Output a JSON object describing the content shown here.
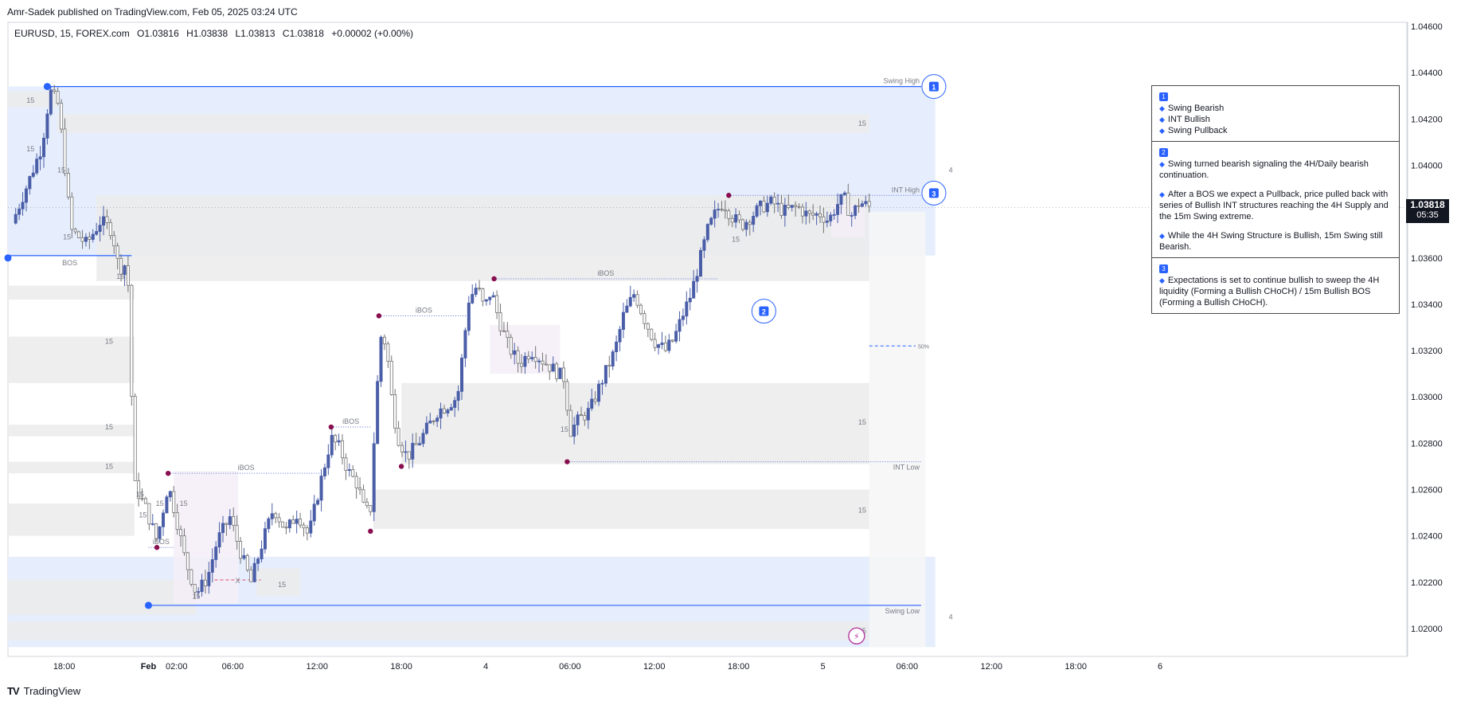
{
  "header": {
    "publisher": "Amr-Sadek published on TradingView.com, Feb 05, 2025 03:24 UTC"
  },
  "symbol_bar": {
    "symbol": "EURUSD, 15, FOREX.com",
    "open": "O1.03816",
    "high": "H1.03838",
    "low": "L1.03813",
    "close": "C1.03818",
    "change": "+0.00002 (+0.00%)"
  },
  "price_tag": {
    "price": "1.03818",
    "countdown": "05:35"
  },
  "footer": {
    "brand": "TradingView"
  },
  "annotation_box": {
    "sections": [
      {
        "num": "1",
        "items": [
          "Swing Bearish",
          "INT Bullish",
          "Swing Pullback"
        ]
      },
      {
        "num": "2",
        "items": [
          "Swing turned bearish signaling the 4H/Daily bearish continuation.",
          "After a BOS we expect a Pullback, price pulled back with series of Bullish INT structures reaching the 4H Supply and the 15m Swing extreme.",
          "While the 4H Swing Structure is Bullish, 15m Swing still Bearish."
        ]
      },
      {
        "num": "3",
        "items": [
          "Expectations is set to continue bullish to sweep the 4H liquidity (Forming a Bullish CHoCH)  / 15m Bullish BOS (Forming a Bullish CHoCH)."
        ]
      }
    ]
  },
  "colors": {
    "bull": "#4a5ea8",
    "bear": "#737373",
    "swing_line": "#2962ff",
    "pivot": "#880e4f",
    "zone_blue": "#e3ecfd",
    "zone_gray": "#ebebeb"
  },
  "chart_data": {
    "type": "candlestick",
    "symbol": "EURUSD",
    "timeframe": "15",
    "y_ticks": [
      1.046,
      1.044,
      1.042,
      1.04,
      1.038,
      1.036,
      1.034,
      1.032,
      1.03,
      1.028,
      1.026,
      1.024,
      1.022,
      1.02
    ],
    "y_tick_labels": [
      "1.04600",
      "1.04400",
      "1.04200",
      "1.04000",
      "1.03800",
      "1.03600",
      "1.03400",
      "1.03200",
      "1.03000",
      "1.02800",
      "1.02600",
      "1.02400",
      "1.02200",
      "1.02000"
    ],
    "x_ticks": [
      {
        "hour": 18,
        "label": "18:00"
      },
      {
        "hour": 24,
        "label": "Feb"
      },
      {
        "hour": 26,
        "label": "02:00"
      },
      {
        "hour": 30,
        "label": "06:00"
      },
      {
        "hour": 36,
        "label": "12:00"
      },
      {
        "hour": 42,
        "label": "18:00"
      },
      {
        "hour": 48,
        "label": "4"
      },
      {
        "hour": 54,
        "label": "06:00"
      },
      {
        "hour": 60,
        "label": "12:00"
      },
      {
        "hour": 66,
        "label": "18:00"
      },
      {
        "hour": 72,
        "label": "5"
      },
      {
        "hour": 78,
        "label": "06:00"
      },
      {
        "hour": 84,
        "label": "12:00"
      },
      {
        "hour": 90,
        "label": "18:00"
      },
      {
        "hour": 96,
        "label": "6"
      }
    ],
    "close_path": [
      [
        14.3,
        1.0375
      ],
      [
        15.6,
        1.0395
      ],
      [
        16.4,
        1.0408
      ],
      [
        17.0,
        1.0432
      ],
      [
        17.6,
        1.0426
      ],
      [
        18.5,
        1.0372
      ],
      [
        19.6,
        1.0366
      ],
      [
        20.6,
        1.0376
      ],
      [
        21.4,
        1.0372
      ],
      [
        21.9,
        1.0355
      ],
      [
        22.5,
        1.0358
      ],
      [
        23.0,
        1.0262
      ],
      [
        23.8,
        1.0252
      ],
      [
        24.6,
        1.0238
      ],
      [
        25.4,
        1.0262
      ],
      [
        25.9,
        1.025
      ],
      [
        26.6,
        1.023
      ],
      [
        27.4,
        1.0215
      ],
      [
        28.2,
        1.0222
      ],
      [
        28.9,
        1.0238
      ],
      [
        29.8,
        1.0248
      ],
      [
        30.6,
        1.0232
      ],
      [
        31.3,
        1.022
      ],
      [
        32.0,
        1.0235
      ],
      [
        32.9,
        1.0252
      ],
      [
        33.8,
        1.0242
      ],
      [
        34.6,
        1.025
      ],
      [
        35.4,
        1.024
      ],
      [
        36.2,
        1.0262
      ],
      [
        37.0,
        1.0282
      ],
      [
        37.6,
        1.0278
      ],
      [
        38.2,
        1.0268
      ],
      [
        38.9,
        1.0262
      ],
      [
        39.4,
        1.025
      ],
      [
        39.8,
        1.0252
      ],
      [
        40.2,
        1.0298
      ],
      [
        40.6,
        1.033
      ],
      [
        41.0,
        1.0318
      ],
      [
        41.4,
        1.0294
      ],
      [
        41.8,
        1.0282
      ],
      [
        42.4,
        1.0274
      ],
      [
        43.2,
        1.028
      ],
      [
        44.0,
        1.0288
      ],
      [
        44.6,
        1.0294
      ],
      [
        45.2,
        1.0296
      ],
      [
        46.0,
        1.03
      ],
      [
        46.8,
        1.0342
      ],
      [
        47.4,
        1.0348
      ],
      [
        47.9,
        1.0338
      ],
      [
        48.4,
        1.0346
      ],
      [
        48.9,
        1.0334
      ],
      [
        49.6,
        1.0322
      ],
      [
        50.4,
        1.0314
      ],
      [
        51.2,
        1.032
      ],
      [
        52.0,
        1.0316
      ],
      [
        52.8,
        1.0312
      ],
      [
        53.6,
        1.0308
      ],
      [
        54.0,
        1.0285
      ],
      [
        54.6,
        1.029
      ],
      [
        55.4,
        1.0294
      ],
      [
        56.2,
        1.0306
      ],
      [
        57.2,
        1.032
      ],
      [
        57.8,
        1.0335
      ],
      [
        58.6,
        1.0345
      ],
      [
        59.2,
        1.0335
      ],
      [
        60.0,
        1.0324
      ],
      [
        60.8,
        1.032
      ],
      [
        61.4,
        1.0325
      ],
      [
        62.0,
        1.0335
      ],
      [
        62.6,
        1.0344
      ],
      [
        63.2,
        1.0358
      ],
      [
        63.8,
        1.0372
      ],
      [
        64.4,
        1.038
      ],
      [
        64.9,
        1.0384
      ],
      [
        65.5,
        1.0378
      ],
      [
        66.2,
        1.0374
      ],
      [
        66.9,
        1.0378
      ],
      [
        67.6,
        1.0382
      ],
      [
        68.4,
        1.0384
      ],
      [
        69.2,
        1.038
      ],
      [
        70.2,
        1.0382
      ],
      [
        71.0,
        1.0378
      ],
      [
        71.8,
        1.0379
      ],
      [
        72.4,
        1.0376
      ],
      [
        73.0,
        1.0383
      ],
      [
        73.5,
        1.0386
      ],
      [
        74.0,
        1.0378
      ],
      [
        74.6,
        1.0384
      ],
      [
        75.4,
        1.03818
      ]
    ],
    "zones": [
      {
        "kind": "blue",
        "x": [
          14,
          80
        ],
        "y": [
          1.0361,
          1.0434
        ]
      },
      {
        "kind": "blue",
        "x": [
          14,
          80
        ],
        "y": [
          1.0192,
          1.0231
        ]
      },
      {
        "kind": "gray",
        "x": [
          17.5,
          75.3
        ],
        "y": [
          1.0414,
          1.0422
        ]
      },
      {
        "kind": "gray",
        "x": [
          20.3,
          75.3
        ],
        "y": [
          1.035,
          1.0387
        ]
      },
      {
        "kind": "gray",
        "x": [
          42.0,
          75.3
        ],
        "y": [
          1.0271,
          1.0306
        ]
      },
      {
        "kind": "gray",
        "x": [
          40.0,
          75.3
        ],
        "y": [
          1.0243,
          1.026
        ]
      },
      {
        "kind": "gray",
        "x": [
          14,
          75.3
        ],
        "y": [
          1.0195,
          1.0203
        ]
      },
      {
        "kind": "gray",
        "x": [
          14,
          23.0
        ],
        "y": [
          1.0342,
          1.0348
        ]
      },
      {
        "kind": "gray",
        "x": [
          14,
          23.0
        ],
        "y": [
          1.0306,
          1.0326
        ]
      },
      {
        "kind": "gray",
        "x": [
          14,
          23.0
        ],
        "y": [
          1.0283,
          1.0288
        ]
      },
      {
        "kind": "gray",
        "x": [
          14,
          23.0
        ],
        "y": [
          1.0267,
          1.0272
        ]
      },
      {
        "kind": "gray",
        "x": [
          14,
          23.0
        ],
        "y": [
          1.024,
          1.0254
        ]
      },
      {
        "kind": "gray",
        "x": [
          14,
          27.4
        ],
        "y": [
          1.0206,
          1.0221
        ]
      },
      {
        "kind": "gray",
        "x": [
          31.7,
          34.8
        ],
        "y": [
          1.0214,
          1.0226
        ]
      },
      {
        "kind": "gray",
        "x": [
          14,
          17.6
        ],
        "y": [
          1.0425,
          1.0432
        ]
      },
      {
        "kind": "pink",
        "x": [
          25.8,
          30.4
        ],
        "y": [
          1.0211,
          1.0268
        ]
      },
      {
        "kind": "pink",
        "x": [
          48.3,
          53.3
        ],
        "y": [
          1.031,
          1.0331
        ]
      },
      {
        "kind": "pink",
        "x": [
          72.6,
          75.0
        ],
        "y": [
          1.0369,
          1.0383
        ]
      },
      {
        "kind": "faint",
        "x": [
          75.3,
          79.3
        ],
        "y": [
          1.0192,
          1.038
        ]
      }
    ],
    "lines": [
      {
        "label": "Swing High",
        "price": 1.0434,
        "x": [
          16.8,
          79.0
        ],
        "style": "solid"
      },
      {
        "label": "Swing Low",
        "price": 1.021,
        "x": [
          24.0,
          79.0
        ],
        "style": "solid"
      },
      {
        "label": "INT High",
        "price": 1.0387,
        "x": [
          65.3,
          79.0
        ],
        "style": "dotted"
      },
      {
        "label": "INT Low",
        "price": 1.0272,
        "x": [
          53.8,
          79.0
        ],
        "style": "dotted"
      },
      {
        "label": "BOS",
        "price": 1.0361,
        "x": [
          14,
          22.8
        ],
        "style": "solid"
      },
      {
        "label": "iBOS",
        "price": 1.0351,
        "x": [
          48.6,
          64.5
        ],
        "style": "dotted"
      },
      {
        "label": "iBOS",
        "price": 1.0335,
        "x": [
          40.4,
          46.8
        ],
        "style": "dotted"
      },
      {
        "label": "iBOS",
        "price": 1.0287,
        "x": [
          37.0,
          39.8
        ],
        "style": "dotted"
      },
      {
        "label": "iBOS",
        "price": 1.0267,
        "x": [
          25.4,
          36.5
        ],
        "style": "dotted"
      },
      {
        "label": "iBOS",
        "price": 1.0235,
        "x": [
          24.0,
          25.8
        ],
        "style": "dotted"
      },
      {
        "label": "X",
        "price": 1.0221,
        "x": [
          28.7,
          32.0
        ],
        "style": "dashed"
      },
      {
        "label": "50%",
        "price": 1.0322,
        "x": [
          75.3,
          78.6
        ],
        "style": "dashed"
      }
    ],
    "pivots": [
      {
        "hour": 16.8,
        "price": 1.0434,
        "kind": "swing"
      },
      {
        "hour": 14.0,
        "price": 1.036,
        "kind": "swing"
      },
      {
        "hour": 24.0,
        "price": 1.021,
        "kind": "swing"
      },
      {
        "hour": 25.4,
        "price": 1.0267
      },
      {
        "hour": 24.6,
        "price": 1.0235
      },
      {
        "hour": 37.0,
        "price": 1.0287
      },
      {
        "hour": 39.8,
        "price": 1.0242
      },
      {
        "hour": 40.4,
        "price": 1.0335
      },
      {
        "hour": 42.0,
        "price": 1.027
      },
      {
        "hour": 48.6,
        "price": 1.0351
      },
      {
        "hour": 53.8,
        "price": 1.0272
      },
      {
        "hour": 65.3,
        "price": 1.0387
      }
    ],
    "zone_labels": [
      {
        "text": "15",
        "hour": 74.8,
        "price": 1.0418
      },
      {
        "text": "15",
        "hour": 74.8,
        "price": 1.0289
      },
      {
        "text": "15",
        "hour": 74.8,
        "price": 1.0251
      },
      {
        "text": "15",
        "hour": 74.8,
        "price": 1.0199
      },
      {
        "text": "15",
        "hour": 15.6,
        "price": 1.0428
      },
      {
        "text": "15",
        "hour": 15.6,
        "price": 1.0407
      },
      {
        "text": "15",
        "hour": 17.8,
        "price": 1.0398
      },
      {
        "text": "15",
        "hour": 18.2,
        "price": 1.0369
      },
      {
        "text": "15",
        "hour": 22.0,
        "price": 1.0352
      },
      {
        "text": "15",
        "hour": 21.2,
        "price": 1.0324
      },
      {
        "text": "15",
        "hour": 21.2,
        "price": 1.0287
      },
      {
        "text": "15",
        "hour": 21.2,
        "price": 1.027
      },
      {
        "text": "15",
        "hour": 23.4,
        "price": 1.0258
      },
      {
        "text": "15",
        "hour": 24.8,
        "price": 1.0254
      },
      {
        "text": "15",
        "hour": 26.5,
        "price": 1.0254
      },
      {
        "text": "15",
        "hour": 23.6,
        "price": 1.0249
      },
      {
        "text": "15",
        "hour": 27.4,
        "price": 1.0214
      },
      {
        "text": "15",
        "hour": 33.5,
        "price": 1.0219
      },
      {
        "text": "15",
        "hour": 53.6,
        "price": 1.0286
      },
      {
        "text": "15",
        "hour": 65.8,
        "price": 1.0368
      },
      {
        "text": "4",
        "hour": 81.1,
        "price": 1.0398
      },
      {
        "text": "4",
        "hour": 81.1,
        "price": 1.0205
      }
    ],
    "markers": [
      {
        "num": "1",
        "hour": 79.9,
        "price": 1.0434
      },
      {
        "num": "3",
        "hour": 79.9,
        "price": 1.0388
      },
      {
        "num": "2",
        "hour": 67.8,
        "price": 1.0337
      }
    ]
  }
}
